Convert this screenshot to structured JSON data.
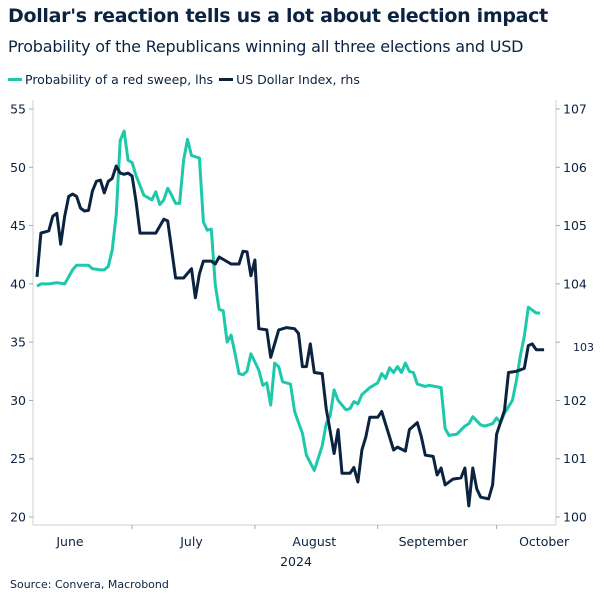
{
  "title": "Dollar's reaction tells us a lot about election impact",
  "subtitle": "Probability of the Republicans winning all three elections and USD",
  "source": "Source: Convera, Macrobond",
  "chart_data": {
    "type": "line",
    "title": "Dollar's reaction tells us a lot about election impact",
    "subtitle": "Probability of the Republicans winning all three elections and USD",
    "xlabel": "2024",
    "x_tick_labels": [
      "June",
      "July",
      "August",
      "September",
      "October"
    ],
    "xlim": [
      "2024-06-06",
      "2024-10-16"
    ],
    "y_left": {
      "ylim": [
        20,
        55
      ],
      "ticks": [
        "20",
        "25",
        "30",
        "35",
        "40",
        "45",
        "50",
        "55"
      ]
    },
    "y_right": {
      "ylim": [
        100,
        107
      ],
      "ticks": [
        "100",
        "101",
        "102",
        "103",
        "104",
        "105",
        "106",
        "107"
      ]
    },
    "grid": false,
    "legend_position": "top-left",
    "series": [
      {
        "name": "Probability of a red sweep, lhs",
        "axis": "left",
        "color": "#1ec8aa",
        "points": [
          [
            "2024-06-07",
            39.8
          ],
          [
            "2024-06-08",
            40.0
          ],
          [
            "2024-06-10",
            40.0
          ],
          [
            "2024-06-12",
            40.1
          ],
          [
            "2024-06-14",
            40.0
          ],
          [
            "2024-06-15",
            40.6
          ],
          [
            "2024-06-16",
            41.2
          ],
          [
            "2024-06-17",
            41.6
          ],
          [
            "2024-06-20",
            41.6
          ],
          [
            "2024-06-21",
            41.3
          ],
          [
            "2024-06-23",
            41.2
          ],
          [
            "2024-06-24",
            41.2
          ],
          [
            "2024-06-25",
            41.5
          ],
          [
            "2024-06-26",
            42.9
          ],
          [
            "2024-06-27",
            45.9
          ],
          [
            "2024-06-28",
            52.3
          ],
          [
            "2024-06-29",
            53.1
          ],
          [
            "2024-06-30",
            50.6
          ],
          [
            "2024-07-01",
            50.4
          ],
          [
            "2024-07-02",
            49.3
          ],
          [
            "2024-07-04",
            47.6
          ],
          [
            "2024-07-05",
            47.4
          ],
          [
            "2024-07-06",
            47.2
          ],
          [
            "2024-07-07",
            47.9
          ],
          [
            "2024-07-08",
            46.8
          ],
          [
            "2024-07-09",
            47.2
          ],
          [
            "2024-07-10",
            48.2
          ],
          [
            "2024-07-11",
            47.6
          ],
          [
            "2024-07-12",
            46.9
          ],
          [
            "2024-07-13",
            46.9
          ],
          [
            "2024-07-14",
            50.6
          ],
          [
            "2024-07-15",
            52.4
          ],
          [
            "2024-07-16",
            51.0
          ],
          [
            "2024-07-18",
            50.8
          ],
          [
            "2024-07-19",
            45.3
          ],
          [
            "2024-07-20",
            44.6
          ],
          [
            "2024-07-21",
            44.7
          ],
          [
            "2024-07-22",
            39.9
          ],
          [
            "2024-07-23",
            37.8
          ],
          [
            "2024-07-24",
            37.7
          ],
          [
            "2024-07-25",
            35.0
          ],
          [
            "2024-07-26",
            35.6
          ],
          [
            "2024-07-27",
            34.0
          ],
          [
            "2024-07-28",
            32.3
          ],
          [
            "2024-07-29",
            32.2
          ],
          [
            "2024-07-30",
            32.5
          ],
          [
            "2024-07-31",
            34.0
          ],
          [
            "2024-08-01",
            33.3
          ],
          [
            "2024-08-02",
            32.6
          ],
          [
            "2024-08-03",
            31.3
          ],
          [
            "2024-08-04",
            31.5
          ],
          [
            "2024-08-05",
            29.6
          ],
          [
            "2024-08-06",
            33.2
          ],
          [
            "2024-08-07",
            32.9
          ],
          [
            "2024-08-08",
            31.6
          ],
          [
            "2024-08-10",
            31.4
          ],
          [
            "2024-08-11",
            29.1
          ],
          [
            "2024-08-12",
            28.1
          ],
          [
            "2024-08-13",
            27.2
          ],
          [
            "2024-08-14",
            25.3
          ],
          [
            "2024-08-16",
            24.0
          ],
          [
            "2024-08-18",
            26.1
          ],
          [
            "2024-08-19",
            28.0
          ],
          [
            "2024-08-20",
            28.7
          ],
          [
            "2024-08-21",
            30.9
          ],
          [
            "2024-08-22",
            30.0
          ],
          [
            "2024-08-24",
            29.2
          ],
          [
            "2024-08-25",
            29.3
          ],
          [
            "2024-08-26",
            29.9
          ],
          [
            "2024-08-27",
            29.7
          ],
          [
            "2024-08-28",
            30.5
          ],
          [
            "2024-08-30",
            31.1
          ],
          [
            "2024-08-31",
            31.3
          ],
          [
            "2024-09-01",
            31.5
          ],
          [
            "2024-09-02",
            32.3
          ],
          [
            "2024-09-03",
            31.9
          ],
          [
            "2024-09-04",
            32.8
          ],
          [
            "2024-09-05",
            32.4
          ],
          [
            "2024-09-06",
            32.9
          ],
          [
            "2024-09-07",
            32.4
          ],
          [
            "2024-09-08",
            33.2
          ],
          [
            "2024-09-09",
            32.5
          ],
          [
            "2024-09-10",
            32.4
          ],
          [
            "2024-09-11",
            31.4
          ],
          [
            "2024-09-13",
            31.2
          ],
          [
            "2024-09-14",
            31.3
          ],
          [
            "2024-09-17",
            31.1
          ],
          [
            "2024-09-18",
            27.6
          ],
          [
            "2024-09-19",
            27.0
          ],
          [
            "2024-09-21",
            27.1
          ],
          [
            "2024-09-23",
            27.8
          ],
          [
            "2024-09-24",
            28.0
          ],
          [
            "2024-09-25",
            28.6
          ],
          [
            "2024-09-27",
            27.9
          ],
          [
            "2024-09-28",
            27.8
          ],
          [
            "2024-09-30",
            28.0
          ],
          [
            "2024-10-01",
            28.5
          ],
          [
            "2024-10-02",
            28.1
          ],
          [
            "2024-10-03",
            28.9
          ],
          [
            "2024-10-05",
            30.0
          ],
          [
            "2024-10-06",
            31.7
          ],
          [
            "2024-10-07",
            33.8
          ],
          [
            "2024-10-08",
            35.5
          ],
          [
            "2024-10-09",
            38.0
          ],
          [
            "2024-10-11",
            37.5
          ],
          [
            "2024-10-12",
            37.5
          ]
        ]
      },
      {
        "name": "US Dollar Index, rhs",
        "axis": "right",
        "color": "#0b2340",
        "points": [
          [
            "2024-06-07",
            104.12
          ],
          [
            "2024-06-08",
            104.87
          ],
          [
            "2024-06-09",
            104.89
          ],
          [
            "2024-06-10",
            104.91
          ],
          [
            "2024-06-11",
            105.16
          ],
          [
            "2024-06-12",
            105.21
          ],
          [
            "2024-06-13",
            104.68
          ],
          [
            "2024-06-14",
            105.16
          ],
          [
            "2024-06-15",
            105.5
          ],
          [
            "2024-06-16",
            105.54
          ],
          [
            "2024-06-17",
            105.5
          ],
          [
            "2024-06-18",
            105.3
          ],
          [
            "2024-06-19",
            105.25
          ],
          [
            "2024-06-20",
            105.26
          ],
          [
            "2024-06-21",
            105.59
          ],
          [
            "2024-06-22",
            105.76
          ],
          [
            "2024-06-23",
            105.78
          ],
          [
            "2024-06-24",
            105.56
          ],
          [
            "2024-06-25",
            105.76
          ],
          [
            "2024-06-26",
            105.81
          ],
          [
            "2024-06-27",
            106.02
          ],
          [
            "2024-06-28",
            105.9
          ],
          [
            "2024-06-29",
            105.88
          ],
          [
            "2024-06-30",
            105.9
          ],
          [
            "2024-07-01",
            105.85
          ],
          [
            "2024-07-02",
            105.42
          ],
          [
            "2024-07-03",
            104.87
          ],
          [
            "2024-07-07",
            104.87
          ],
          [
            "2024-07-09",
            105.11
          ],
          [
            "2024-07-10",
            105.08
          ],
          [
            "2024-07-12",
            104.1
          ],
          [
            "2024-07-14",
            104.1
          ],
          [
            "2024-07-16",
            104.26
          ],
          [
            "2024-07-17",
            103.76
          ],
          [
            "2024-07-18",
            104.17
          ],
          [
            "2024-07-19",
            104.39
          ],
          [
            "2024-07-21",
            104.39
          ],
          [
            "2024-07-22",
            104.34
          ],
          [
            "2024-07-23",
            104.46
          ],
          [
            "2024-07-26",
            104.34
          ],
          [
            "2024-07-28",
            104.34
          ],
          [
            "2024-07-29",
            104.56
          ],
          [
            "2024-07-30",
            104.55
          ],
          [
            "2024-07-31",
            104.14
          ],
          [
            "2024-08-01",
            104.41
          ],
          [
            "2024-08-02",
            103.23
          ],
          [
            "2024-08-04",
            103.21
          ],
          [
            "2024-08-05",
            102.74
          ],
          [
            "2024-08-07",
            103.21
          ],
          [
            "2024-08-09",
            103.25
          ],
          [
            "2024-08-11",
            103.23
          ],
          [
            "2024-08-12",
            103.15
          ],
          [
            "2024-08-13",
            102.58
          ],
          [
            "2024-08-14",
            102.58
          ],
          [
            "2024-08-15",
            102.97
          ],
          [
            "2024-08-16",
            102.48
          ],
          [
            "2024-08-18",
            102.46
          ],
          [
            "2024-08-19",
            101.86
          ],
          [
            "2024-08-21",
            101.09
          ],
          [
            "2024-08-22",
            101.5
          ],
          [
            "2024-08-23",
            100.75
          ],
          [
            "2024-08-25",
            100.75
          ],
          [
            "2024-08-26",
            100.85
          ],
          [
            "2024-08-27",
            100.6
          ],
          [
            "2024-08-28",
            101.15
          ],
          [
            "2024-08-29",
            101.37
          ],
          [
            "2024-08-30",
            101.71
          ],
          [
            "2024-09-01",
            101.71
          ],
          [
            "2024-09-02",
            101.81
          ],
          [
            "2024-09-04",
            101.37
          ],
          [
            "2024-09-05",
            101.15
          ],
          [
            "2024-09-06",
            101.2
          ],
          [
            "2024-09-08",
            101.13
          ],
          [
            "2024-09-09",
            101.5
          ],
          [
            "2024-09-11",
            101.62
          ],
          [
            "2024-09-12",
            101.38
          ],
          [
            "2024-09-13",
            101.06
          ],
          [
            "2024-09-15",
            101.04
          ],
          [
            "2024-09-16",
            100.72
          ],
          [
            "2024-09-17",
            100.84
          ],
          [
            "2024-09-18",
            100.55
          ],
          [
            "2024-09-20",
            100.65
          ],
          [
            "2024-09-22",
            100.67
          ],
          [
            "2024-09-23",
            100.84
          ],
          [
            "2024-09-24",
            100.19
          ],
          [
            "2024-09-25",
            100.84
          ],
          [
            "2024-09-26",
            100.48
          ],
          [
            "2024-09-27",
            100.34
          ],
          [
            "2024-09-29",
            100.31
          ],
          [
            "2024-09-30",
            100.55
          ],
          [
            "2024-10-01",
            101.42
          ],
          [
            "2024-10-03",
            101.83
          ],
          [
            "2024-10-04",
            102.48
          ],
          [
            "2024-10-06",
            102.5
          ],
          [
            "2024-10-08",
            102.55
          ],
          [
            "2024-10-09",
            102.94
          ],
          [
            "2024-10-10",
            102.97
          ],
          [
            "2024-10-11",
            102.87
          ],
          [
            "2024-10-13",
            102.87
          ]
        ]
      }
    ]
  }
}
